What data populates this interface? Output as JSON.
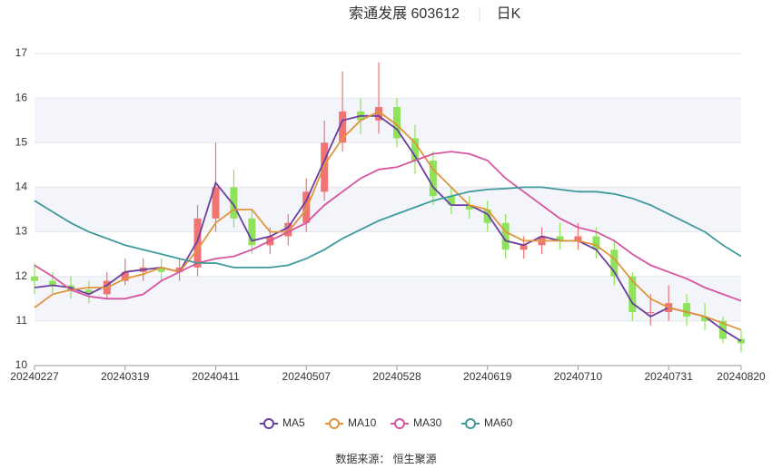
{
  "chart_data": {
    "type": "candlestick",
    "title": "索通发展 603612",
    "period": "日K",
    "source": "数据来源：  恒生聚源",
    "categories": [
      "20240227",
      null,
      null,
      null,
      null,
      "20240319",
      null,
      null,
      null,
      null,
      "20240411",
      null,
      null,
      null,
      null,
      "20240507",
      null,
      null,
      null,
      null,
      "20240528",
      null,
      null,
      null,
      null,
      "20240619",
      null,
      null,
      null,
      null,
      "20240710",
      null,
      null,
      null,
      null,
      "20240731",
      null,
      null,
      null,
      "20240820"
    ],
    "open": [
      12.0,
      11.9,
      11.8,
      11.7,
      11.6,
      11.9,
      12.1,
      12.2,
      12.1,
      12.2,
      13.3,
      14.0,
      13.3,
      12.7,
      12.9,
      13.2,
      13.9,
      15.0,
      15.7,
      15.5,
      15.8,
      15.1,
      14.6,
      13.8,
      13.6,
      13.5,
      13.2,
      12.6,
      12.7,
      12.9,
      12.8,
      12.9,
      12.6,
      12.0,
      11.2,
      11.2,
      11.4,
      11.1,
      11.0,
      10.6
    ],
    "high": [
      12.3,
      12.1,
      12.0,
      11.9,
      12.1,
      12.4,
      12.4,
      12.4,
      12.4,
      13.6,
      15.0,
      14.4,
      13.5,
      13.1,
      13.4,
      14.2,
      15.5,
      16.6,
      16.0,
      16.8,
      16.0,
      15.4,
      14.8,
      14.0,
      13.8,
      13.7,
      13.4,
      12.9,
      13.1,
      13.2,
      13.2,
      13.1,
      12.8,
      12.1,
      11.6,
      11.8,
      11.6,
      11.4,
      11.1,
      10.8
    ],
    "low": [
      11.6,
      11.6,
      11.5,
      11.4,
      11.5,
      11.8,
      11.9,
      11.9,
      11.9,
      12.0,
      13.0,
      13.1,
      12.5,
      12.5,
      12.7,
      13.0,
      13.7,
      14.8,
      15.2,
      15.2,
      14.9,
      14.3,
      13.6,
      13.4,
      13.3,
      13.0,
      12.4,
      12.4,
      12.5,
      12.6,
      12.6,
      12.4,
      11.8,
      11.0,
      10.9,
      11.0,
      10.9,
      10.8,
      10.5,
      10.3
    ],
    "close": [
      11.9,
      11.8,
      11.7,
      11.6,
      11.9,
      12.1,
      12.2,
      12.1,
      12.2,
      13.3,
      14.0,
      13.3,
      12.7,
      12.9,
      13.2,
      13.9,
      15.0,
      15.7,
      15.5,
      15.8,
      15.1,
      14.6,
      13.8,
      13.6,
      13.5,
      13.2,
      12.6,
      12.7,
      12.9,
      12.8,
      12.9,
      12.6,
      12.0,
      11.2,
      11.2,
      11.4,
      11.1,
      11.0,
      10.6,
      10.5
    ],
    "up_color": "#f07474",
    "down_color": "#8fe35a",
    "series": [
      {
        "name": "MA5",
        "color": "#6a3fa0",
        "values": [
          11.75,
          11.8,
          11.75,
          11.6,
          11.8,
          12.1,
          12.15,
          12.2,
          12.1,
          12.8,
          14.1,
          13.6,
          12.8,
          12.9,
          13.1,
          13.7,
          14.6,
          15.5,
          15.6,
          15.6,
          15.3,
          14.7,
          14.0,
          13.6,
          13.6,
          13.4,
          12.8,
          12.7,
          12.9,
          12.8,
          12.8,
          12.6,
          12.1,
          11.4,
          11.1,
          11.3,
          11.2,
          11.1,
          10.8,
          10.55
        ]
      },
      {
        "name": "MA10",
        "color": "#e0953a",
        "values": [
          11.3,
          11.6,
          11.7,
          11.75,
          11.75,
          11.95,
          12.05,
          12.2,
          12.1,
          12.6,
          13.2,
          13.5,
          13.5,
          13.0,
          13.0,
          13.5,
          14.5,
          15.1,
          15.5,
          15.7,
          15.4,
          15.0,
          14.4,
          14.0,
          13.6,
          13.5,
          13.0,
          12.8,
          12.8,
          12.8,
          12.8,
          12.7,
          12.4,
          11.9,
          11.5,
          11.3,
          11.2,
          11.1,
          10.95,
          10.8
        ]
      },
      {
        "name": "MA30",
        "color": "#d6559e",
        "values": [
          12.25,
          12.0,
          11.7,
          11.55,
          11.5,
          11.5,
          11.6,
          11.9,
          12.1,
          12.3,
          12.4,
          12.45,
          12.6,
          12.8,
          13.0,
          13.2,
          13.6,
          13.9,
          14.2,
          14.4,
          14.45,
          14.6,
          14.75,
          14.8,
          14.75,
          14.6,
          14.2,
          13.9,
          13.6,
          13.3,
          13.1,
          13.0,
          12.8,
          12.5,
          12.25,
          12.1,
          11.95,
          11.75,
          11.6,
          11.45
        ]
      },
      {
        "name": "MA60",
        "color": "#3f9a9a",
        "values": [
          13.7,
          13.45,
          13.2,
          13.0,
          12.85,
          12.7,
          12.6,
          12.5,
          12.4,
          12.3,
          12.3,
          12.2,
          12.2,
          12.2,
          12.25,
          12.4,
          12.6,
          12.85,
          13.05,
          13.25,
          13.4,
          13.55,
          13.7,
          13.8,
          13.9,
          13.95,
          13.97,
          14.0,
          14.0,
          13.95,
          13.9,
          13.9,
          13.85,
          13.75,
          13.6,
          13.4,
          13.2,
          13.0,
          12.7,
          12.45
        ]
      }
    ],
    "ylim": [
      10,
      17
    ],
    "yticks": [
      10,
      11,
      12,
      13,
      14,
      15,
      16,
      17
    ],
    "grid": true
  }
}
